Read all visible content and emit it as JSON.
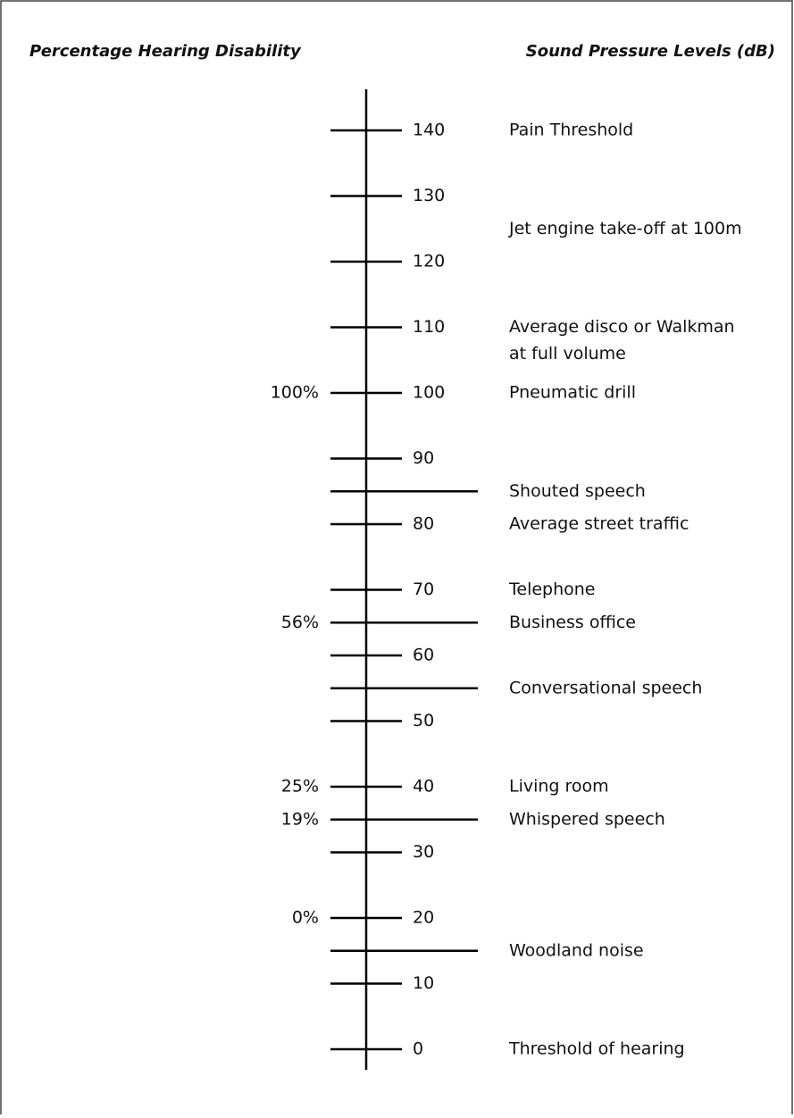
{
  "titles": {
    "left": "Percentage Hearing Disability",
    "right": "Sound Pressure Levels (dB)"
  },
  "scale": {
    "ticks": [
      0,
      10,
      20,
      30,
      40,
      50,
      60,
      70,
      80,
      90,
      100,
      110,
      120,
      130,
      140
    ]
  },
  "levels": [
    85,
    65,
    55,
    35,
    15
  ],
  "markers": [
    {
      "db": 100,
      "label": "100%"
    },
    {
      "db": 65,
      "label": "56%"
    },
    {
      "db": 40,
      "label": "25%"
    },
    {
      "db": 35,
      "label": "19%"
    },
    {
      "db": 20,
      "label": "0%"
    }
  ],
  "sources": [
    {
      "db": 140,
      "lines": [
        "Pain Threshold"
      ]
    },
    {
      "db": 125,
      "lines": [
        "Jet engine take-off at 100m"
      ]
    },
    {
      "db": 110,
      "lines": [
        "Average disco or Walkman",
        "at full volume"
      ]
    },
    {
      "db": 100,
      "lines": [
        "Pneumatic drill"
      ]
    },
    {
      "db": 85,
      "lines": [
        "Shouted speech"
      ]
    },
    {
      "db": 80,
      "lines": [
        "Average street traffic"
      ]
    },
    {
      "db": 70,
      "lines": [
        "Telephone"
      ]
    },
    {
      "db": 65,
      "lines": [
        "Business office"
      ]
    },
    {
      "db": 55,
      "lines": [
        "Conversational speech"
      ]
    },
    {
      "db": 40,
      "lines": [
        "Living room"
      ]
    },
    {
      "db": 35,
      "lines": [
        "Whispered speech"
      ]
    },
    {
      "db": 15,
      "lines": [
        "Woodland noise"
      ]
    },
    {
      "db": 0,
      "lines": [
        "Threshold of hearing"
      ]
    }
  ]
}
